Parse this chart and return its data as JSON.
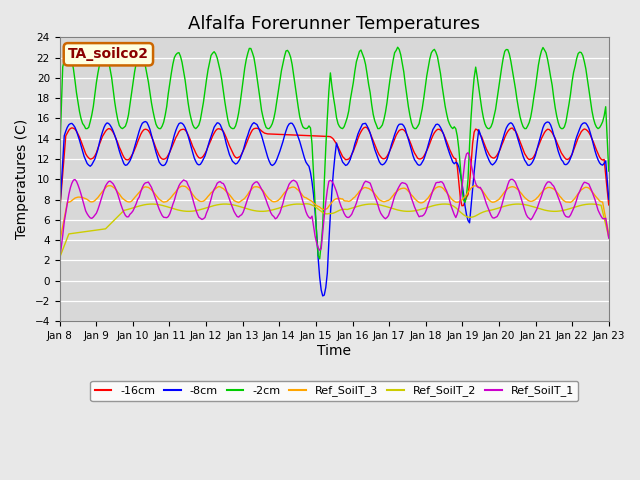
{
  "title": "Alfalfa Forerunner Temperatures",
  "xlabel": "Time",
  "ylabel": "Temperatures (C)",
  "annotation": "TA_soilco2",
  "ylim": [
    -4,
    24
  ],
  "yticks": [
    -4,
    -2,
    0,
    2,
    4,
    6,
    8,
    10,
    12,
    14,
    16,
    18,
    20,
    22,
    24
  ],
  "xtick_labels": [
    "Jan 8",
    "Jan 9",
    "Jan 10",
    "Jan 11",
    "Jan 12",
    "Jan 13",
    "Jan 14",
    "Jan 15",
    "Jan 16",
    "Jan 17",
    "Jan 18",
    "Jan 19",
    "Jan 20",
    "Jan 21",
    "Jan 22",
    "Jan 23"
  ],
  "colors": {
    "neg16cm": "#ff0000",
    "neg8cm": "#0000ff",
    "neg2cm": "#00cc00",
    "ref3": "#ffa500",
    "ref2": "#cccc00",
    "ref1": "#cc00cc"
  },
  "plot_bg": "#d8d8d8",
  "fig_bg": "#e8e8e8",
  "title_fontsize": 13,
  "label_fontsize": 10,
  "tick_fontsize": 7.5,
  "legend_labels": [
    "-16cm",
    "-8cm",
    "-2cm",
    "Ref_SoilT_3",
    "Ref_SoilT_2",
    "Ref_SoilT_1"
  ]
}
